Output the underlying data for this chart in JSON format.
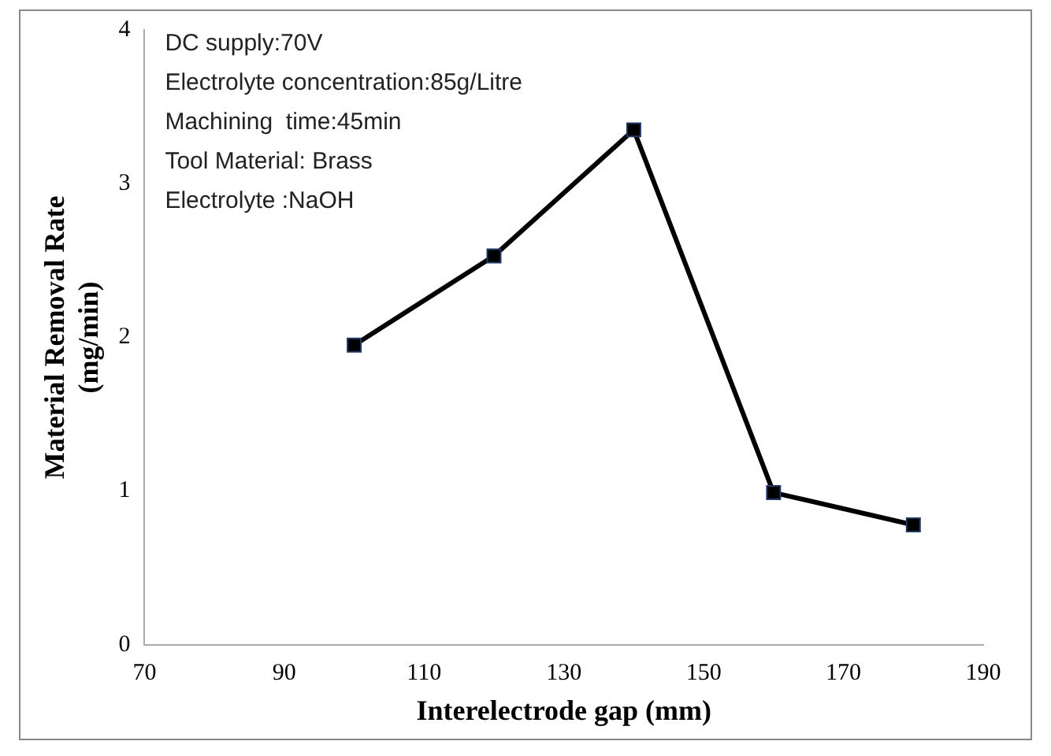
{
  "chart_data": {
    "type": "line",
    "xlabel": "Interelectrode gap (mm)",
    "ylabel": "Material Removal Rate (mg/min)",
    "x": [
      100,
      120,
      140,
      160,
      180
    ],
    "series": [
      {
        "color": "#000000",
        "values": [
          1.95,
          2.53,
          3.35,
          0.99,
          0.78
        ]
      }
    ],
    "xlim": [
      70,
      190
    ],
    "xticks": [
      70,
      90,
      110,
      130,
      150,
      170,
      190
    ],
    "ylim": [
      0,
      4
    ],
    "yticks": [
      0,
      1,
      2,
      3,
      4
    ],
    "grid": false,
    "legend": false,
    "marker": "square",
    "line_style": "solid",
    "annotations": [
      "DC supply:70V",
      "Electrolyte concentration:85g/Litre",
      "Machining  time:45min",
      "Tool Material: Brass",
      "Electrolyte :NaOH"
    ]
  }
}
